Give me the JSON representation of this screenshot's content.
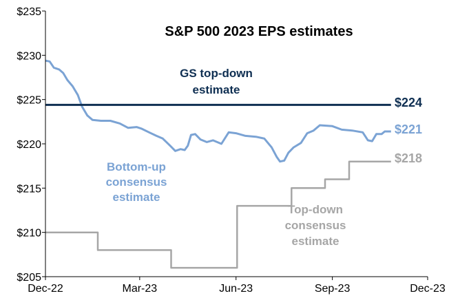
{
  "chart_data": {
    "type": "line",
    "title": "S&P 500 2023 EPS estimates",
    "x_ticks": [
      "Dec-22",
      "Mar-23",
      "Jun-23",
      "Sep-23",
      "Dec-23"
    ],
    "xlim": [
      "2022-12-01",
      "2023-12-01"
    ],
    "y_ticks": [
      "$205",
      "$210",
      "$215",
      "$220",
      "$225",
      "$230",
      "$235"
    ],
    "ylim": [
      205,
      235
    ],
    "grid": false,
    "series": [
      {
        "name": "Bottom-up consensus estimate",
        "label_lines": [
          "Bottom-up",
          "consensus",
          "estimate"
        ],
        "end_label": "$221",
        "color": "#7ba3d4",
        "points": [
          [
            "2022-12-01",
            229.4
          ],
          [
            "2022-12-05",
            229.3
          ],
          [
            "2022-12-09",
            228.6
          ],
          [
            "2022-12-14",
            228.4
          ],
          [
            "2022-12-18",
            228.0
          ],
          [
            "2022-12-22",
            227.2
          ],
          [
            "2022-12-27",
            226.5
          ],
          [
            "2023-01-01",
            225.5
          ],
          [
            "2023-01-05",
            224.2
          ],
          [
            "2023-01-10",
            223.2
          ],
          [
            "2023-01-15",
            222.7
          ],
          [
            "2023-01-23",
            222.6
          ],
          [
            "2023-02-01",
            222.6
          ],
          [
            "2023-02-10",
            222.3
          ],
          [
            "2023-02-18",
            221.8
          ],
          [
            "2023-02-26",
            221.9
          ],
          [
            "2023-03-03",
            221.7
          ],
          [
            "2023-03-10",
            221.3
          ],
          [
            "2023-03-17",
            220.9
          ],
          [
            "2023-03-23",
            220.6
          ],
          [
            "2023-03-30",
            219.8
          ],
          [
            "2023-04-04",
            219.2
          ],
          [
            "2023-04-09",
            219.4
          ],
          [
            "2023-04-13",
            219.3
          ],
          [
            "2023-04-16",
            219.8
          ],
          [
            "2023-04-19",
            221.0
          ],
          [
            "2023-04-23",
            221.1
          ],
          [
            "2023-04-28",
            220.5
          ],
          [
            "2023-05-04",
            220.2
          ],
          [
            "2023-05-10",
            220.4
          ],
          [
            "2023-05-18",
            220.0
          ],
          [
            "2023-05-25",
            221.3
          ],
          [
            "2023-06-01",
            221.2
          ],
          [
            "2023-06-10",
            220.9
          ],
          [
            "2023-06-20",
            220.8
          ],
          [
            "2023-06-28",
            220.6
          ],
          [
            "2023-07-05",
            219.6
          ],
          [
            "2023-07-10",
            218.5
          ],
          [
            "2023-07-13",
            218.0
          ],
          [
            "2023-07-17",
            218.1
          ],
          [
            "2023-07-21",
            219.0
          ],
          [
            "2023-07-26",
            219.6
          ],
          [
            "2023-08-02",
            220.1
          ],
          [
            "2023-08-08",
            221.2
          ],
          [
            "2023-08-14",
            221.5
          ],
          [
            "2023-08-20",
            222.1
          ],
          [
            "2023-09-01",
            222.0
          ],
          [
            "2023-09-10",
            221.6
          ],
          [
            "2023-09-20",
            221.5
          ],
          [
            "2023-09-30",
            221.3
          ],
          [
            "2023-10-05",
            220.4
          ],
          [
            "2023-10-09",
            220.3
          ],
          [
            "2023-10-13",
            221.1
          ],
          [
            "2023-10-18",
            221.1
          ],
          [
            "2023-10-21",
            221.4
          ],
          [
            "2023-10-27",
            221.4
          ]
        ]
      },
      {
        "name": "GS top-down estimate",
        "label_lines": [
          "GS top-down",
          "estimate"
        ],
        "end_label": "$224",
        "color": "#0f2f52",
        "points": [
          [
            "2022-12-01",
            224.4
          ],
          [
            "2023-10-27",
            224.4
          ]
        ]
      },
      {
        "name": "Top-down consensus estimate",
        "label_lines": [
          "Top-down",
          "consensus",
          "estimate"
        ],
        "end_label": "$218",
        "color": "#a6a6a6",
        "step": true,
        "points": [
          [
            "2022-12-01",
            210.0
          ],
          [
            "2023-01-20",
            208.0
          ],
          [
            "2023-03-31",
            206.0
          ],
          [
            "2023-06-02",
            213.0
          ],
          [
            "2023-07-24",
            215.0
          ],
          [
            "2023-08-25",
            216.0
          ],
          [
            "2023-09-17",
            218.0
          ],
          [
            "2023-10-27",
            218.0
          ]
        ]
      }
    ]
  }
}
